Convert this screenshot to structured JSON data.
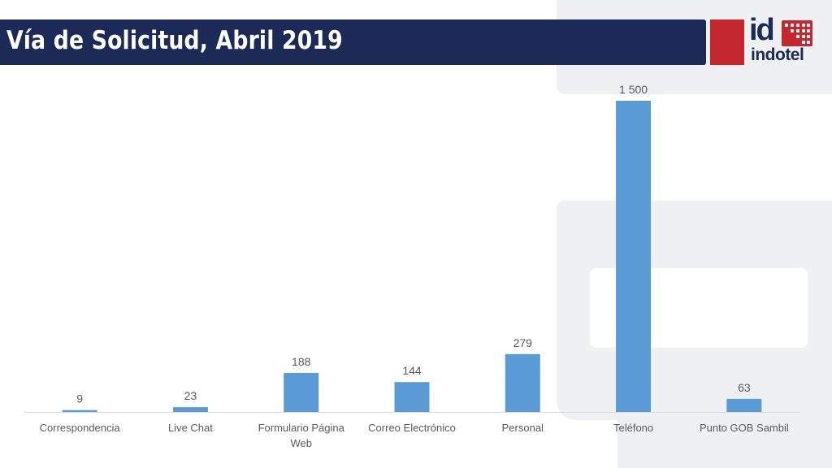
{
  "slide": {
    "title": "Vía de Solicitud, Abril 2019"
  },
  "logo": {
    "mark": "id",
    "wordmark": "indotel"
  },
  "colors": {
    "title_bar": "#1b2a57",
    "accent_red": "#c4272e",
    "bar": "#5b9bd5"
  },
  "chart_data": {
    "type": "bar",
    "title": "",
    "xlabel": "",
    "ylabel": "",
    "categories": [
      "Correspondencia",
      "Live Chat",
      "Formulario Página Web",
      "Correo Electrónico",
      "Personal",
      "Teléfono",
      "Punto GOB Sambil"
    ],
    "values": [
      9,
      23,
      188,
      144,
      279,
      1500,
      63
    ],
    "value_labels": [
      "9",
      "23",
      "188",
      "144",
      "279",
      "1 500",
      "63"
    ],
    "ylim": [
      0,
      1500
    ],
    "grid": false,
    "legend": "none"
  }
}
